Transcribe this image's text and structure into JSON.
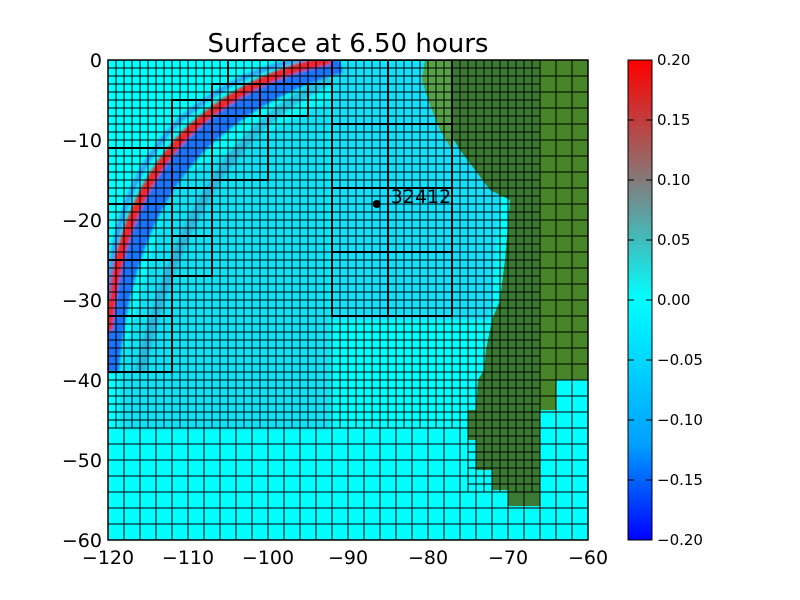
{
  "chart_data": {
    "type": "heatmap",
    "title": "Surface at 6.50 hours",
    "xlabel": "",
    "ylabel": "",
    "xlim": [
      -120,
      -60
    ],
    "ylim": [
      -60,
      0
    ],
    "x_ticks": [
      "−120",
      "−110",
      "−100",
      "−90",
      "−80",
      "−70",
      "−60"
    ],
    "x_tick_values": [
      -120,
      -110,
      -100,
      -90,
      -80,
      -70,
      -60
    ],
    "y_ticks": [
      "0",
      "−10",
      "−20",
      "−30",
      "−40",
      "−50",
      "−60"
    ],
    "y_tick_values": [
      0,
      -10,
      -20,
      -30,
      -40,
      -50,
      -60
    ],
    "colorbar": {
      "min": -0.2,
      "max": 0.2,
      "ticks": [
        "0.20",
        "0.15",
        "0.10",
        "0.05",
        "0.00",
        "−0.05",
        "−0.10",
        "−0.15",
        "−0.20"
      ],
      "tick_values": [
        0.2,
        0.15,
        0.1,
        0.05,
        0.0,
        -0.05,
        -0.1,
        -0.15,
        -0.2
      ],
      "colors": [
        "#0000ff",
        "#00a0ff",
        "#00ffff",
        "#3fbfbf",
        "#9f6060",
        "#ff0000"
      ]
    },
    "gauge": {
      "label": "32412",
      "x": -86.4,
      "y": -18.0
    },
    "background_color": "#00ffff",
    "land_color": "#3b7a32",
    "land_color_light": "#5a9a20",
    "wave_front_color": "#ff2020",
    "trough_color": "#1a6cff",
    "grid": true,
    "grid_patches": [
      {
        "x0": -120,
        "x1": -75,
        "y0": -46,
        "y1": 0,
        "step": 1
      },
      {
        "x0": -75,
        "x1": -66,
        "y0": -54,
        "y1": 0,
        "step": 1
      },
      {
        "x0": -120,
        "x1": -60,
        "y0": -60,
        "y1": -46,
        "step": 2
      },
      {
        "x0": -66,
        "x1": -60,
        "y0": -40,
        "y1": 0,
        "step": 2
      },
      {
        "x0": -66,
        "x1": -60,
        "y0": -60,
        "y1": -40,
        "step": 2
      }
    ],
    "coarse_boxes": [
      {
        "x0": -120,
        "x1": -112,
        "y0": -18,
        "y1": -11
      },
      {
        "x0": -120,
        "x1": -112,
        "y0": -25,
        "y1": -18
      },
      {
        "x0": -120,
        "x1": -112,
        "y0": -32,
        "y1": -25
      },
      {
        "x0": -120,
        "x1": -112,
        "y0": -39,
        "y1": -32
      },
      {
        "x0": -112,
        "x1": -107,
        "y0": -16,
        "y1": -5
      },
      {
        "x0": -112,
        "x1": -107,
        "y0": -22,
        "y1": -16
      },
      {
        "x0": -112,
        "x1": -107,
        "y0": -27,
        "y1": -22
      },
      {
        "x0": -107,
        "x1": -100,
        "y0": -15,
        "y1": -7
      },
      {
        "x0": -107,
        "x1": -101,
        "y0": -7,
        "y1": -3
      },
      {
        "x0": -101,
        "x1": -95,
        "y0": -7,
        "y1": -3
      },
      {
        "x0": -105,
        "x1": -98,
        "y0": -3,
        "y1": 0
      },
      {
        "x0": -98,
        "x1": -92,
        "y0": -3,
        "y1": 0
      },
      {
        "x0": -92,
        "x1": -85,
        "y0": -8,
        "y1": 0
      },
      {
        "x0": -85,
        "x1": -77,
        "y0": -8,
        "y1": 0
      },
      {
        "x0": -92,
        "x1": -85,
        "y0": -16,
        "y1": -8
      },
      {
        "x0": -85,
        "x1": -77,
        "y0": -16,
        "y1": -8
      },
      {
        "x0": -92,
        "x1": -85,
        "y0": -24,
        "y1": -16
      },
      {
        "x0": -85,
        "x1": -77,
        "y0": -24,
        "y1": -16
      },
      {
        "x0": -92,
        "x1": -85,
        "y0": -32,
        "y1": -24
      },
      {
        "x0": -85,
        "x1": -77,
        "y0": -32,
        "y1": -24
      }
    ]
  }
}
